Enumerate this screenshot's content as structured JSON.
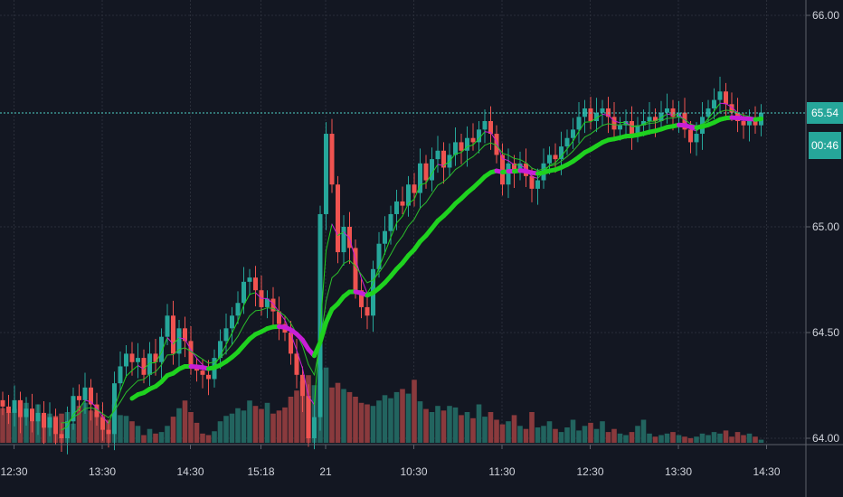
{
  "chart_data": {
    "type": "candlestick",
    "title": "",
    "colors": {
      "background": "#131722",
      "up": "#26a69a",
      "down": "#ef5350",
      "grid": "#2a2e39",
      "ma_rising": "#1fd21f",
      "ma_falling": "#c71fd6",
      "price_line": "#4fd1c5"
    },
    "ylim": [
      64.0,
      66.0
    ],
    "y_ticks": [
      "66.00",
      "65.00",
      "64.50",
      "64.00"
    ],
    "y_tick_values": [
      66.0,
      65.0,
      64.5,
      64.0
    ],
    "x_ticks": [
      "12:30",
      "13:30",
      "14:30",
      "15:18",
      "21",
      "10:30",
      "11:30",
      "12:30",
      "13:30",
      "14:30"
    ],
    "x_tick_bar_index": [
      1,
      16,
      31,
      43,
      54,
      69,
      84,
      99,
      114,
      129
    ],
    "grid": true,
    "last_price": "65.54",
    "countdown": "00:46",
    "close": [
      64.15,
      64.12,
      64.18,
      64.1,
      64.14,
      64.08,
      64.12,
      64.05,
      64.1,
      64.02,
      64.0,
      64.08,
      64.2,
      64.18,
      64.24,
      64.16,
      64.1,
      64.04,
      64.02,
      64.26,
      64.34,
      64.4,
      64.36,
      64.38,
      64.3,
      64.4,
      64.36,
      64.48,
      64.58,
      64.4,
      64.52,
      64.46,
      64.34,
      64.32,
      64.3,
      64.28,
      64.38,
      64.46,
      64.52,
      64.58,
      64.64,
      64.74,
      64.76,
      64.7,
      64.62,
      64.66,
      64.6,
      64.54,
      64.5,
      64.4,
      64.3,
      64.2,
      64.0,
      64.1,
      65.06,
      65.44,
      65.2,
      64.88,
      65.0,
      64.9,
      64.7,
      64.62,
      64.58,
      64.8,
      64.92,
      64.98,
      65.06,
      65.12,
      65.1,
      65.2,
      65.16,
      65.3,
      65.22,
      65.32,
      65.36,
      65.28,
      65.34,
      65.4,
      65.36,
      65.42,
      65.4,
      65.46,
      65.5,
      65.44,
      65.34,
      65.2,
      65.3,
      65.26,
      65.3,
      65.24,
      65.18,
      65.22,
      65.3,
      65.34,
      65.32,
      65.38,
      65.42,
      65.46,
      65.52,
      65.56,
      65.5,
      65.54,
      65.56,
      65.52,
      65.46,
      65.48,
      65.5,
      65.44,
      65.48,
      65.5,
      65.52,
      65.5,
      65.54,
      65.56,
      65.52,
      65.54,
      65.46,
      65.4,
      65.44,
      65.52,
      65.56,
      65.6,
      65.64,
      65.58,
      65.54,
      65.5,
      65.48,
      65.5,
      65.48,
      65.54
    ],
    "volume": [
      45,
      40,
      44,
      55,
      52,
      28,
      50,
      36,
      38,
      35,
      38,
      40,
      25,
      48,
      52,
      42,
      40,
      36,
      30,
      50,
      36,
      35,
      28,
      22,
      10,
      18,
      12,
      14,
      22,
      34,
      45,
      55,
      40,
      26,
      12,
      10,
      15,
      28,
      35,
      38,
      45,
      42,
      55,
      48,
      44,
      52,
      38,
      42,
      46,
      60,
      68,
      80,
      88,
      75,
      95,
      98,
      72,
      78,
      70,
      66,
      60,
      52,
      50,
      48,
      55,
      62,
      58,
      66,
      70,
      64,
      82,
      54,
      44,
      40,
      48,
      42,
      48,
      46,
      36,
      40,
      32,
      50,
      34,
      40,
      30,
      24,
      28,
      36,
      22,
      18,
      40,
      20,
      22,
      28,
      18,
      14,
      20,
      30,
      16,
      22,
      26,
      18,
      28,
      14,
      18,
      12,
      10,
      14,
      22,
      30,
      12,
      8,
      10,
      12,
      14,
      10,
      8,
      6,
      8,
      12,
      10,
      14,
      12,
      16,
      8,
      14,
      10,
      12,
      8,
      4
    ]
  }
}
